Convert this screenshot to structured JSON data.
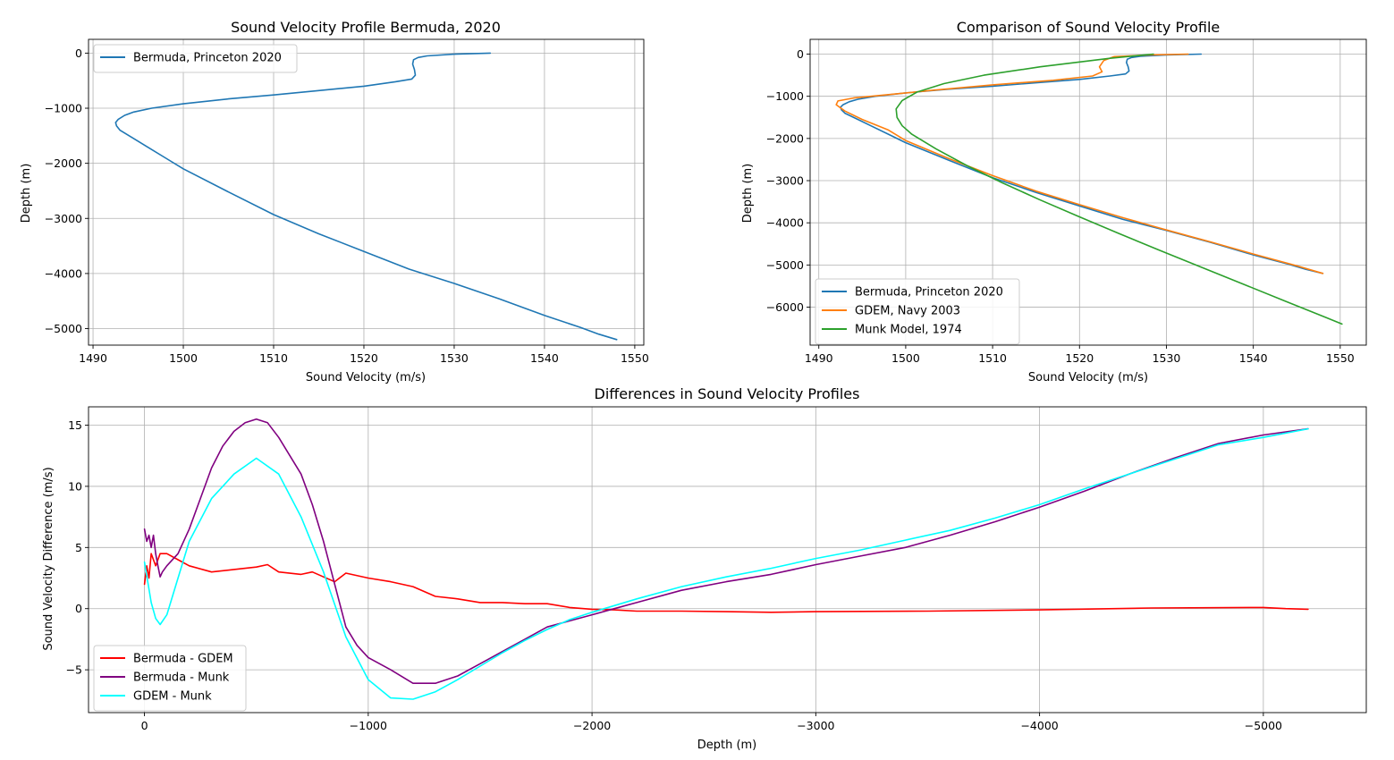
{
  "chart_data": [
    {
      "id": "bermuda",
      "type": "line",
      "title": "Sound Velocity Profile Bermuda, 2020",
      "xlabel": "Sound Velocity (m/s)",
      "ylabel": "Depth (m)",
      "xlim": [
        1489.5,
        1551
      ],
      "ylim": [
        -5300,
        250
      ],
      "xticks": [
        1490,
        1500,
        1510,
        1520,
        1530,
        1540,
        1550
      ],
      "yticks": [
        0,
        -1000,
        -2000,
        -3000,
        -4000,
        -5000
      ],
      "grid": true,
      "legend": "upper-left",
      "series": [
        {
          "name": "Bermuda, Princeton 2020",
          "color": "#1f77b4",
          "x": [
            1534.0,
            1530.0,
            1527.0,
            1526.0,
            1525.5,
            1525.4,
            1525.6,
            1525.7,
            1525.3,
            1523.5,
            1520.0,
            1515.0,
            1510.0,
            1505.0,
            1500.0,
            1496.5,
            1494.5,
            1493.5,
            1492.8,
            1492.5,
            1492.6,
            1493.0,
            1494.5,
            1496.0,
            1498.0,
            1500.0,
            1505.0,
            1510.0,
            1515.0,
            1520.0,
            1525.0,
            1530.0,
            1535.0,
            1540.0,
            1544.0,
            1546.0,
            1548.0
          ],
          "y": [
            0,
            -20,
            -50,
            -80,
            -120,
            -200,
            -300,
            -400,
            -470,
            -520,
            -600,
            -680,
            -760,
            -830,
            -920,
            -1000,
            -1070,
            -1130,
            -1200,
            -1260,
            -1320,
            -1400,
            -1550,
            -1700,
            -1900,
            -2100,
            -2520,
            -2930,
            -3280,
            -3600,
            -3920,
            -4180,
            -4460,
            -4760,
            -4980,
            -5100,
            -5200
          ]
        }
      ]
    },
    {
      "id": "comparison",
      "type": "line",
      "title": "Comparison of Sound Velocity Profile",
      "xlabel": "Sound Velocity (m/s)",
      "ylabel": "Depth (m)",
      "xlim": [
        1489,
        1553
      ],
      "ylim": [
        -6900,
        350
      ],
      "xticks": [
        1490,
        1500,
        1510,
        1520,
        1530,
        1540,
        1550
      ],
      "yticks": [
        0,
        -1000,
        -2000,
        -3000,
        -4000,
        -5000,
        -6000
      ],
      "grid": true,
      "legend": "lower-left",
      "series": [
        {
          "name": "Bermuda, Princeton 2020",
          "color": "#1f77b4",
          "x": [
            1534.0,
            1530.0,
            1527.0,
            1526.0,
            1525.5,
            1525.4,
            1525.6,
            1525.7,
            1525.3,
            1523.5,
            1520.0,
            1515.0,
            1510.0,
            1505.0,
            1500.0,
            1496.5,
            1494.5,
            1493.5,
            1492.8,
            1492.5,
            1492.6,
            1493.0,
            1494.5,
            1496.0,
            1498.0,
            1500.0,
            1505.0,
            1510.0,
            1515.0,
            1520.0,
            1525.0,
            1530.0,
            1535.0,
            1540.0,
            1544.0,
            1546.0,
            1548.0
          ],
          "y": [
            0,
            -20,
            -50,
            -80,
            -120,
            -200,
            -300,
            -400,
            -470,
            -520,
            -600,
            -680,
            -760,
            -830,
            -920,
            -1000,
            -1070,
            -1130,
            -1200,
            -1260,
            -1320,
            -1400,
            -1550,
            -1700,
            -1900,
            -2100,
            -2520,
            -2930,
            -3280,
            -3600,
            -3920,
            -4180,
            -4460,
            -4760,
            -4980,
            -5100,
            -5200
          ]
        },
        {
          "name": "GDEM, Navy 2003",
          "color": "#ff7f0e",
          "x": [
            1532.5,
            1528.0,
            1524.0,
            1522.8,
            1522.3,
            1522.6,
            1521.5,
            1517.0,
            1510.0,
            1503.0,
            1497.5,
            1494.0,
            1492.2,
            1492.0,
            1493.0,
            1495.0,
            1498.0,
            1500.0,
            1505.0,
            1510.0,
            1515.0,
            1520.0,
            1525.0,
            1530.0,
            1535.0,
            1540.0,
            1545.0,
            1548.0
          ],
          "y": [
            0,
            -20,
            -60,
            -150,
            -300,
            -420,
            -520,
            -620,
            -730,
            -860,
            -970,
            -1040,
            -1110,
            -1200,
            -1350,
            -1550,
            -1800,
            -2050,
            -2480,
            -2880,
            -3250,
            -3570,
            -3880,
            -4170,
            -4450,
            -4740,
            -5020,
            -5200
          ]
        },
        {
          "name": "Munk Model, 1974",
          "color": "#2ca02c",
          "x": [
            1528.5,
            1523.5,
            1515.5,
            1509.0,
            1504.4,
            1501.3,
            1499.6,
            1498.9,
            1499.0,
            1499.6,
            1500.7,
            1503.5,
            1507.1,
            1511.1,
            1515.4,
            1519.9,
            1524.5,
            1529.2,
            1534.0,
            1538.8,
            1543.6,
            1548.4,
            1550.2
          ],
          "y": [
            0,
            -100,
            -300,
            -500,
            -700,
            -900,
            -1100,
            -1300,
            -1500,
            -1700,
            -1900,
            -2250,
            -2650,
            -3050,
            -3450,
            -3850,
            -4250,
            -4650,
            -5050,
            -5450,
            -5850,
            -6250,
            -6400
          ]
        }
      ]
    },
    {
      "id": "differences",
      "type": "line",
      "title": "Differences in Sound Velocity Profiles",
      "xlabel": "Depth (m)",
      "ylabel": "Sound Velocity Difference (m/s)",
      "xlim": [
        250,
        -5460
      ],
      "ylim": [
        -8.5,
        16.5
      ],
      "xticks": [
        0,
        -1000,
        -2000,
        -3000,
        -4000,
        -5000
      ],
      "xtick_labels": [
        "0",
        "−1000",
        "−2000",
        "−3000",
        "−4000",
        "−5000"
      ],
      "yticks": [
        -5,
        0,
        5,
        10,
        15
      ],
      "ytick_labels": [
        "−5",
        "0",
        "5",
        "10",
        "15"
      ],
      "grid": true,
      "legend": "lower-left",
      "series": [
        {
          "name": "Bermuda - GDEM",
          "color": "#ff0000",
          "x": [
            0,
            -10,
            -20,
            -30,
            -40,
            -50,
            -70,
            -100,
            -150,
            -200,
            -300,
            -400,
            -500,
            -550,
            -600,
            -700,
            -750,
            -800,
            -850,
            -900,
            -1000,
            -1100,
            -1200,
            -1300,
            -1400,
            -1500,
            -1600,
            -1700,
            -1800,
            -1900,
            -2000,
            -2100,
            -2200,
            -2400,
            -2600,
            -2800,
            -3000,
            -3500,
            -4000,
            -4500,
            -5000,
            -5100,
            -5200
          ],
          "y": [
            2.0,
            3.5,
            2.5,
            4.5,
            4.0,
            3.5,
            4.5,
            4.5,
            4.0,
            3.5,
            3.0,
            3.2,
            3.4,
            3.6,
            3.0,
            2.8,
            3.0,
            2.6,
            2.2,
            2.9,
            2.5,
            2.2,
            1.8,
            1.0,
            0.8,
            0.5,
            0.5,
            0.4,
            0.4,
            0.1,
            -0.05,
            -0.1,
            -0.2,
            -0.2,
            -0.25,
            -0.3,
            -0.25,
            -0.2,
            -0.1,
            0.05,
            0.1,
            0.0,
            -0.05
          ]
        },
        {
          "name": "Bermuda - Munk",
          "color": "#800080",
          "x": [
            0,
            -10,
            -20,
            -30,
            -40,
            -50,
            -60,
            -70,
            -80,
            -100,
            -150,
            -200,
            -250,
            -300,
            -350,
            -400,
            -450,
            -500,
            -550,
            -600,
            -650,
            -700,
            -750,
            -800,
            -850,
            -900,
            -950,
            -1000,
            -1100,
            -1200,
            -1300,
            -1400,
            -1500,
            -1600,
            -1700,
            -1800,
            -1900,
            -2000,
            -2100,
            -2200,
            -2400,
            -2600,
            -2800,
            -3000,
            -3200,
            -3400,
            -3600,
            -3800,
            -4000,
            -4200,
            -4400,
            -4600,
            -4800,
            -5000,
            -5200
          ],
          "y": [
            6.5,
            5.5,
            6.0,
            5.0,
            6.0,
            4.5,
            3.5,
            2.6,
            3.0,
            3.5,
            4.5,
            6.5,
            9.0,
            11.5,
            13.3,
            14.5,
            15.2,
            15.5,
            15.2,
            14.0,
            12.5,
            11.0,
            8.5,
            5.5,
            2.0,
            -1.5,
            -3.0,
            -4.0,
            -5.0,
            -6.1,
            -6.1,
            -5.5,
            -4.5,
            -3.5,
            -2.5,
            -1.5,
            -1.0,
            -0.5,
            0.0,
            0.5,
            1.5,
            2.2,
            2.8,
            3.6,
            4.3,
            5.0,
            6.0,
            7.1,
            8.3,
            9.6,
            11.0,
            12.3,
            13.5,
            14.2,
            14.7
          ]
        },
        {
          "name": "GDEM - Munk",
          "color": "#00ffff",
          "x": [
            0,
            -30,
            -50,
            -70,
            -100,
            -150,
            -200,
            -300,
            -400,
            -500,
            -600,
            -700,
            -800,
            -900,
            -1000,
            -1100,
            -1200,
            -1300,
            -1400,
            -1500,
            -1600,
            -1700,
            -1800,
            -1900,
            -2000,
            -2200,
            -2400,
            -2600,
            -2800,
            -3000,
            -3200,
            -3400,
            -3600,
            -3800,
            -4000,
            -4200,
            -4400,
            -4600,
            -4800,
            -5000,
            -5200
          ],
          "y": [
            3.8,
            0.5,
            -0.8,
            -1.3,
            -0.5,
            2.5,
            5.5,
            9.0,
            11.0,
            12.3,
            11.0,
            7.5,
            3.0,
            -2.3,
            -5.8,
            -7.3,
            -7.4,
            -6.8,
            -5.8,
            -4.7,
            -3.6,
            -2.6,
            -1.7,
            -0.9,
            -0.3,
            0.8,
            1.8,
            2.6,
            3.3,
            4.1,
            4.8,
            5.6,
            6.4,
            7.4,
            8.5,
            9.8,
            11.0,
            12.2,
            13.4,
            14.0,
            14.7
          ]
        }
      ]
    }
  ]
}
